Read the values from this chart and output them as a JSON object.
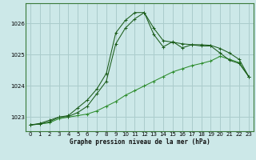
{
  "title": "Graphe pression niveau de la mer (hPa)",
  "background_color": "#cce8e8",
  "grid_color": "#aacccc",
  "line_color_dark": "#1a5c1a",
  "line_color_light": "#2d8c2d",
  "xlim": [
    -0.5,
    23.5
  ],
  "ylim": [
    1022.55,
    1026.65
  ],
  "yticks": [
    1023,
    1024,
    1025,
    1026
  ],
  "xticks": [
    0,
    1,
    2,
    3,
    4,
    5,
    6,
    7,
    8,
    9,
    10,
    11,
    12,
    13,
    14,
    15,
    16,
    17,
    18,
    19,
    20,
    21,
    22,
    23
  ],
  "series1_x": [
    0,
    1,
    2,
    3,
    4,
    5,
    6,
    7,
    8,
    9,
    10,
    11,
    12,
    13,
    14,
    15,
    16,
    17,
    18,
    19,
    20,
    21,
    22,
    23
  ],
  "series1_y": [
    1022.75,
    1022.78,
    1022.82,
    1022.95,
    1023.0,
    1023.05,
    1023.1,
    1023.2,
    1023.35,
    1023.5,
    1023.7,
    1023.85,
    1024.0,
    1024.15,
    1024.3,
    1024.45,
    1024.55,
    1024.65,
    1024.72,
    1024.8,
    1024.95,
    1024.85,
    1024.75,
    1024.3
  ],
  "series2_x": [
    0,
    1,
    2,
    3,
    4,
    5,
    6,
    7,
    8,
    9,
    10,
    11,
    12,
    13,
    14,
    15,
    16,
    17,
    18,
    19,
    20,
    21,
    22,
    23
  ],
  "series2_y": [
    1022.75,
    1022.8,
    1022.9,
    1023.0,
    1023.05,
    1023.3,
    1023.55,
    1023.9,
    1024.4,
    1025.7,
    1026.1,
    1026.35,
    1026.35,
    1025.85,
    1025.45,
    1025.4,
    1025.35,
    1025.32,
    1025.32,
    1025.3,
    1025.2,
    1025.05,
    1024.85,
    1024.3
  ],
  "series3_x": [
    0,
    1,
    2,
    3,
    4,
    5,
    6,
    7,
    8,
    9,
    10,
    11,
    12,
    13,
    14,
    15,
    16,
    17,
    18,
    19,
    20,
    21,
    22,
    23
  ],
  "series3_y": [
    1022.75,
    1022.78,
    1022.85,
    1023.0,
    1023.02,
    1023.15,
    1023.35,
    1023.75,
    1024.15,
    1025.35,
    1025.85,
    1026.15,
    1026.35,
    1025.65,
    1025.25,
    1025.42,
    1025.22,
    1025.32,
    1025.28,
    1025.28,
    1025.05,
    1024.82,
    1024.72,
    1024.3
  ]
}
